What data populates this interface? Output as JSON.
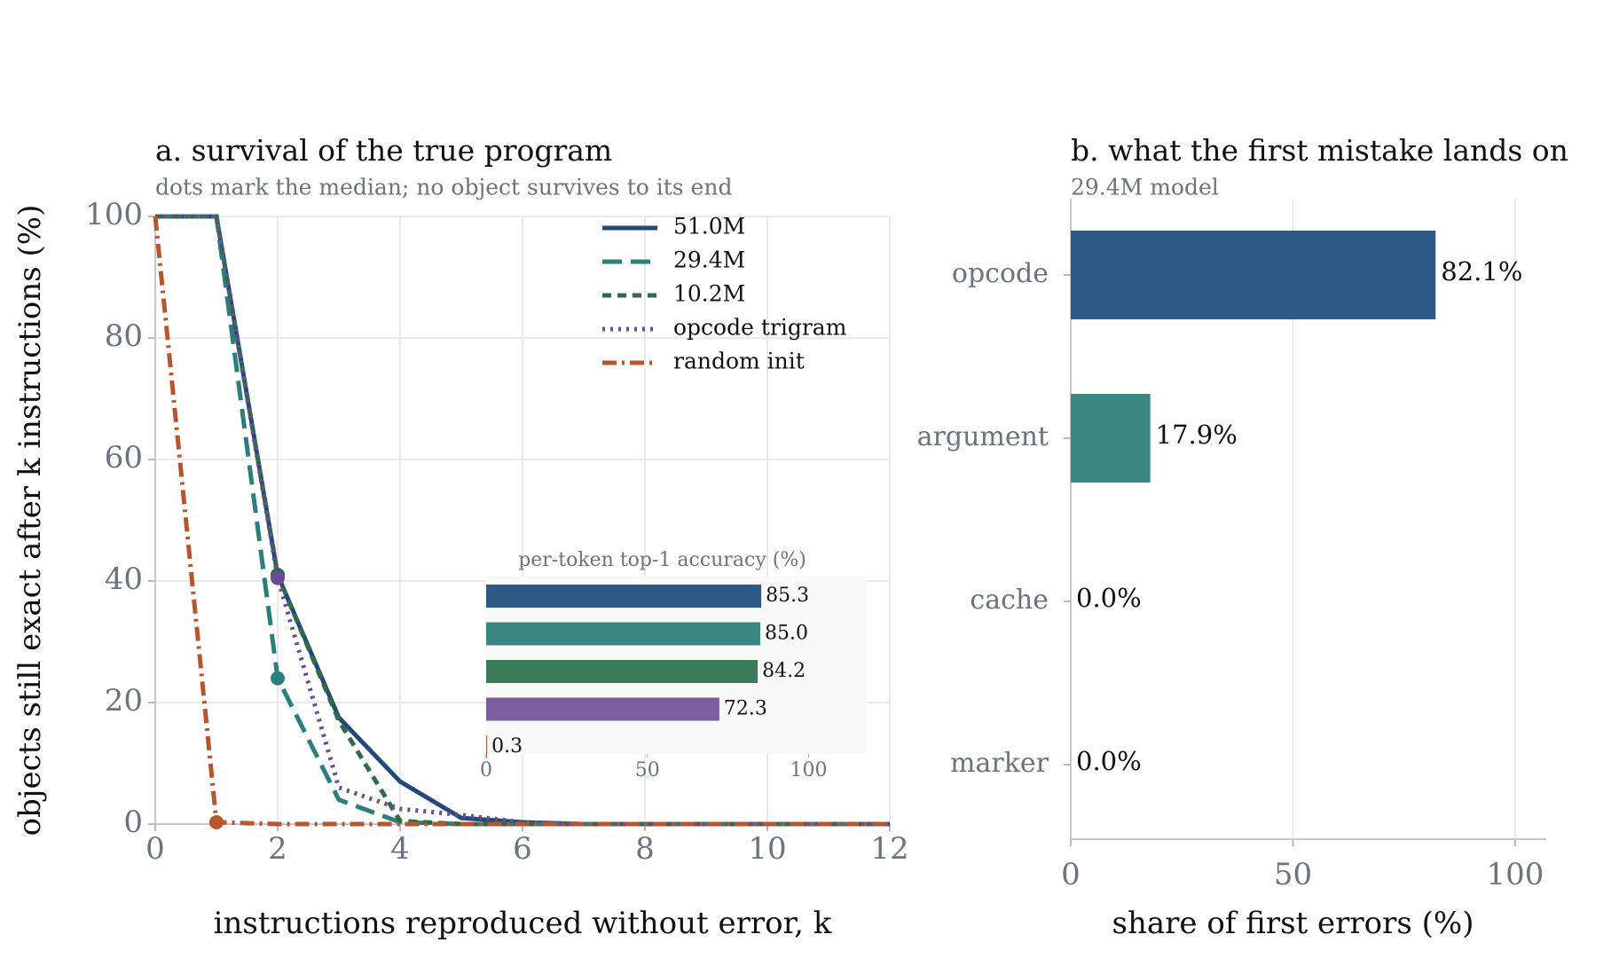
{
  "chart_data": [
    {
      "type": "line",
      "title": "a.  survival of the true program",
      "subtitle": "dots mark the median; no object survives to its end",
      "x_label": "instructions reproduced without error, k",
      "y_label": "objects still exact after k instructions (%)",
      "x": [
        0,
        1,
        2,
        3,
        4,
        5,
        6,
        7,
        8,
        9,
        10,
        11,
        12
      ],
      "series": [
        {
          "name": "51.0M",
          "color": "#22497a",
          "linestyle": "solid",
          "median": 2,
          "values": [
            100,
            100,
            41,
            17.5,
            7,
            1,
            0.3,
            0,
            0,
            0,
            0,
            0,
            0
          ]
        },
        {
          "name": "29.4M",
          "color": "#2a7f7d",
          "linestyle": "dashed",
          "median": 2,
          "values": [
            100,
            100,
            24,
            4,
            0.3,
            0,
            0,
            0,
            0,
            0,
            0,
            0,
            0
          ]
        },
        {
          "name": "10.2M",
          "color": "#2e6b47",
          "linestyle": "short-dashed",
          "median": 2,
          "values": [
            100,
            100,
            41,
            17,
            0.5,
            0,
            0,
            0,
            0,
            0,
            0,
            0,
            0
          ]
        },
        {
          "name": "opcode trigram",
          "color": "#6b4a98",
          "linestyle": "dotted",
          "median": 2,
          "values": [
            100,
            100,
            40.5,
            6,
            2.5,
            1.5,
            0.3,
            0,
            0,
            0,
            0,
            0,
            0
          ]
        },
        {
          "name": "random init",
          "color": "#b9552c",
          "linestyle": "dash-dot",
          "median": 1,
          "values": [
            100,
            0.3,
            0,
            0,
            0,
            0,
            0,
            0,
            0,
            0,
            0,
            0,
            0
          ]
        }
      ],
      "xlim": [
        0,
        12
      ],
      "ylim": [
        0,
        100
      ],
      "xticks": [
        0,
        2,
        4,
        6,
        8,
        10,
        12
      ],
      "yticks": [
        0,
        20,
        40,
        60,
        80,
        100
      ],
      "grid": true,
      "legend": "upper right"
    },
    {
      "type": "bar",
      "orientation": "horizontal",
      "title": "per-token top-1 accuracy (%)",
      "values": [
        85.3,
        85.0,
        84.2,
        72.3,
        0.3
      ],
      "value_labels": [
        "85.3",
        "85.0",
        "84.2",
        "72.3",
        "0.3"
      ],
      "colors": [
        "#2d5a84",
        "#3a8783",
        "#3b7a5a",
        "#7a5e9e",
        "#c0582e"
      ],
      "xlim": [
        0,
        118
      ],
      "xticks": [
        0,
        50,
        100
      ]
    },
    {
      "type": "bar",
      "orientation": "horizontal",
      "title": "b.  what the first mistake lands on",
      "subtitle": "29.4M model",
      "categories": [
        "opcode",
        "argument",
        "cache",
        "marker"
      ],
      "values": [
        82.1,
        17.9,
        0,
        0
      ],
      "value_labels": [
        "82.1%",
        "17.9%",
        "0.0%",
        "0.0%"
      ],
      "colors": [
        "#2d5a84",
        "#3a8783",
        "#3b7a5a",
        "#7a5e9e"
      ],
      "x_label": "share of first errors (%)",
      "xlim": [
        0,
        107
      ],
      "xticks": [
        0,
        50,
        100
      ],
      "grid": true
    }
  ]
}
